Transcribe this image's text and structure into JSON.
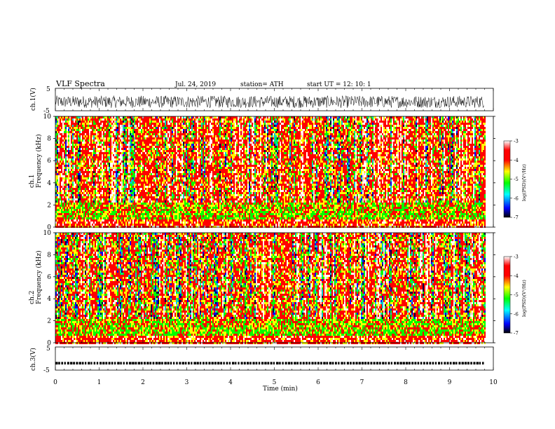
{
  "header": {
    "title": "VLF Spectra",
    "date": "Jul. 24, 2019",
    "station": "station= ATH",
    "start": "start UT =   12: 10: 1"
  },
  "chart_data": [
    {
      "type": "line",
      "panel": "ch1_waveform",
      "ylabel": "ch.1(V)",
      "ylim": [
        -5,
        5
      ],
      "y_ticks": [
        "5",
        "-5"
      ],
      "x_range_min": [
        0,
        9.8
      ],
      "description_values": "noisy waveform oscillating approximately between -3 and 3 V around a baseline near -1 V",
      "baseline": -1,
      "amplitude": 2.7,
      "color": "#000000"
    },
    {
      "type": "heatmap",
      "panel": "ch1_spectrogram",
      "ylabel": "ch.1 Frequency (kHz)",
      "ylim": [
        0,
        10
      ],
      "y_ticks": [
        "0",
        "2",
        "4",
        "6",
        "8",
        "10"
      ],
      "x_range_min": [
        0,
        9.8
      ],
      "colorbar": {
        "label": "log(PSD)(V²/Hz)",
        "range": [
          -7,
          -3
        ],
        "ticks": [
          "-3",
          "-4",
          "-5",
          "-6",
          "-7"
        ],
        "colors": [
          "#000000",
          "#0000ff",
          "#00ffff",
          "#00ff00",
          "#ffff00",
          "#ff0000",
          "#ffffff"
        ]
      }
    },
    {
      "type": "heatmap",
      "panel": "ch2_spectrogram",
      "ylabel": "ch.2 Frequency (kHz)",
      "ylim": [
        0,
        10
      ],
      "y_ticks": [
        "0",
        "2",
        "4",
        "6",
        "8",
        "10"
      ],
      "x_range_min": [
        0,
        9.8
      ],
      "colorbar": {
        "label": "log(PSD)(V²/Hz)",
        "range": [
          -7,
          -3
        ],
        "ticks": [
          "-3",
          "-4",
          "-5",
          "-6",
          "-7"
        ],
        "colors": [
          "#000000",
          "#0000ff",
          "#00ffff",
          "#00ff00",
          "#ffff00",
          "#ff0000",
          "#ffffff"
        ]
      }
    },
    {
      "type": "scatter",
      "panel": "ch3_level",
      "ylabel": "ch.3(V)",
      "ylim": [
        -5,
        5
      ],
      "y_ticks": [
        "5",
        "-5"
      ],
      "x_range_min": [
        0,
        9.8
      ],
      "level": -2,
      "color": "#000000"
    }
  ],
  "x_axis": {
    "label": "Time (min)",
    "range": [
      0,
      10
    ],
    "ticks": [
      "0",
      "1",
      "2",
      "3",
      "4",
      "5",
      "6",
      "7",
      "8",
      "9",
      "10"
    ]
  }
}
